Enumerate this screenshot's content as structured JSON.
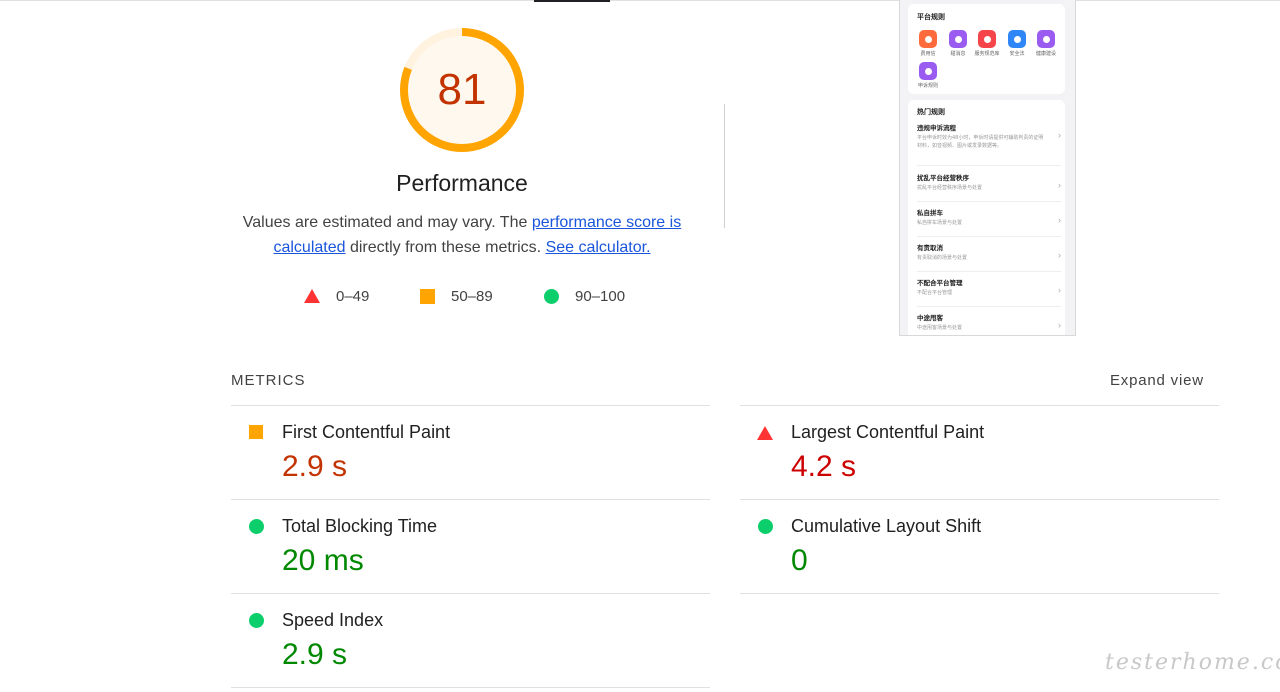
{
  "score": {
    "value": "81",
    "fraction": 0.81,
    "label": "Performance",
    "color": "#ffa400",
    "text_color": "#c33300"
  },
  "description": {
    "prefix": "Values are estimated and may vary. The ",
    "link1": "performance score is calculated",
    "middle": " directly from these metrics. ",
    "link2": "See calculator."
  },
  "legend": [
    {
      "icon": "red-triangle-icon",
      "range": "0–49"
    },
    {
      "icon": "orange-square-icon",
      "range": "50–89"
    },
    {
      "icon": "green-circle-icon",
      "range": "90–100"
    }
  ],
  "thumbnail": {
    "section1_title": "平台规则",
    "icons": [
      {
        "label": "费用信",
        "color": "#ff6a3d"
      },
      {
        "label": "甜消息",
        "color": "#9a5cf0"
      },
      {
        "label": "服务规范库",
        "color": "#f5454a"
      },
      {
        "label": "安全法",
        "color": "#2f86f6"
      },
      {
        "label": "健康建设",
        "color": "#9a5cf0"
      },
      {
        "label": "申诉规则",
        "color": "#9a5cf0"
      }
    ],
    "section2_title": "热门规则",
    "rows": [
      {
        "title": "违规申诉流程",
        "sub": "平台申诉时效为48小时，申诉时请提供可辅助判责的证明材料，如音视频、图片或发录数据等。"
      },
      {
        "title": "扰乱平台经营秩序",
        "sub": "扰乱平台经营秩序场景与处置"
      },
      {
        "title": "私自拼车",
        "sub": "私自拼车场景与处置"
      },
      {
        "title": "有责取消",
        "sub": "有责取消的场景与处置"
      },
      {
        "title": "不配合平台管理",
        "sub": "不配合平台管理"
      },
      {
        "title": "中途甩客",
        "sub": "中途甩客场景与处置"
      }
    ]
  },
  "metrics": {
    "title": "METRICS",
    "expand_label": "Expand view",
    "items": [
      {
        "name": "First Contentful Paint",
        "value": "2.9 s",
        "rating": "average",
        "icon": "orange-square-icon"
      },
      {
        "name": "Largest Contentful Paint",
        "value": "4.2 s",
        "rating": "fail",
        "icon": "red-triangle-icon"
      },
      {
        "name": "Total Blocking Time",
        "value": "20 ms",
        "rating": "pass",
        "icon": "green-circle-icon"
      },
      {
        "name": "Cumulative Layout Shift",
        "value": "0",
        "rating": "pass",
        "icon": "green-circle-icon"
      },
      {
        "name": "Speed Index",
        "value": "2.9 s",
        "rating": "pass",
        "icon": "green-circle-icon"
      }
    ]
  },
  "watermark": "testerhome.com"
}
